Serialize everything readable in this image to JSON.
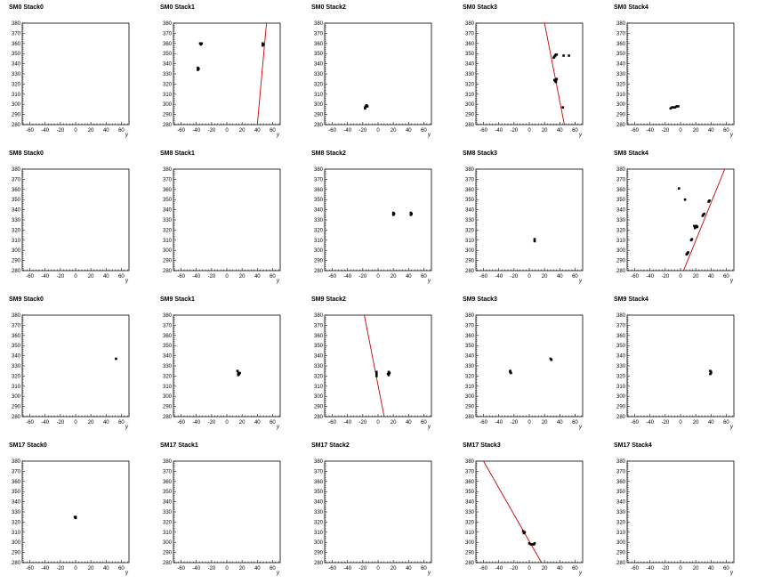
{
  "axis": {
    "xlabel": "y",
    "xlim": [
      -70,
      70
    ],
    "ylim": [
      280,
      380
    ],
    "xticks": [
      -60,
      -40,
      -20,
      0,
      20,
      40,
      60
    ],
    "yticks": [
      280,
      290,
      300,
      310,
      320,
      330,
      340,
      350,
      360,
      370,
      380
    ]
  },
  "colors": {
    "frame": "#000000",
    "points": "#000000",
    "fit_line": "#cc0000"
  },
  "chart_data": [
    {
      "type": "scatter",
      "title": "SM0 Stack0",
      "points": [],
      "fit": null
    },
    {
      "type": "scatter",
      "title": "SM0 Stack1",
      "points": [
        [
          -35,
          360
        ],
        [
          -34,
          359
        ],
        [
          -33,
          360
        ],
        [
          -38,
          336
        ],
        [
          -38,
          334
        ],
        [
          -37,
          335
        ],
        [
          47,
          360
        ],
        [
          48,
          359
        ],
        [
          47,
          358
        ]
      ],
      "fit": [
        [
          40,
          280
        ],
        [
          52,
          380
        ]
      ]
    },
    {
      "type": "scatter",
      "title": "SM0 Stack2",
      "points": [
        [
          -17,
          297
        ],
        [
          -16,
          298
        ],
        [
          -15,
          299
        ],
        [
          -14,
          298
        ],
        [
          -17,
          296
        ]
      ],
      "fit": null
    },
    {
      "type": "scatter",
      "title": "SM0 Stack3",
      "points": [
        [
          32,
          346
        ],
        [
          33,
          347
        ],
        [
          34,
          348
        ],
        [
          35,
          349
        ],
        [
          36,
          349
        ],
        [
          45,
          348
        ],
        [
          52,
          348
        ],
        [
          33,
          324
        ],
        [
          34,
          323
        ],
        [
          35,
          324
        ],
        [
          36,
          325
        ],
        [
          35,
          322
        ],
        [
          44,
          297
        ]
      ],
      "fit": [
        [
          20,
          380
        ],
        [
          46,
          280
        ]
      ]
    },
    {
      "type": "scatter",
      "title": "SM0 Stack4",
      "points": [
        [
          -13,
          296
        ],
        [
          -11,
          297
        ],
        [
          -9,
          297
        ],
        [
          -7,
          297
        ],
        [
          -5,
          298
        ],
        [
          -3,
          298
        ]
      ],
      "fit": null
    },
    {
      "type": "scatter",
      "title": "SM8 Stack0",
      "points": [],
      "fit": null
    },
    {
      "type": "scatter",
      "title": "SM8 Stack1",
      "points": [],
      "fit": null
    },
    {
      "type": "scatter",
      "title": "SM8 Stack2",
      "points": [
        [
          20,
          337
        ],
        [
          21,
          336
        ],
        [
          20,
          335
        ],
        [
          43,
          337
        ],
        [
          44,
          336
        ],
        [
          43,
          335
        ]
      ],
      "fit": null
    },
    {
      "type": "scatter",
      "title": "SM8 Stack3",
      "points": [
        [
          7,
          311
        ],
        [
          7,
          309
        ]
      ],
      "fit": null
    },
    {
      "type": "scatter",
      "title": "SM8 Stack4",
      "points": [
        [
          -2,
          361
        ],
        [
          6,
          350
        ],
        [
          37,
          348
        ],
        [
          38,
          349
        ],
        [
          30,
          335
        ],
        [
          31,
          336
        ],
        [
          29,
          334
        ],
        [
          21,
          324
        ],
        [
          22,
          323
        ],
        [
          19,
          322
        ],
        [
          18,
          324
        ],
        [
          15,
          311
        ],
        [
          14,
          310
        ],
        [
          10,
          298
        ],
        [
          9,
          297
        ],
        [
          8,
          296
        ]
      ],
      "fit": [
        [
          4,
          280
        ],
        [
          58,
          380
        ]
      ]
    },
    {
      "type": "scatter",
      "title": "SM9 Stack0",
      "points": [
        [
          53,
          337
        ]
      ],
      "fit": null
    },
    {
      "type": "scatter",
      "title": "SM9 Stack1",
      "points": [
        [
          14,
          325
        ],
        [
          15,
          323
        ],
        [
          16,
          322
        ],
        [
          15,
          321
        ],
        [
          17,
          323
        ]
      ],
      "fit": null
    },
    {
      "type": "scatter",
      "title": "SM9 Stack2",
      "points": [
        [
          -2,
          324
        ],
        [
          -2,
          322
        ],
        [
          -2,
          320
        ],
        [
          14,
          324
        ],
        [
          15,
          323
        ],
        [
          13,
          322
        ],
        [
          14,
          321
        ]
      ],
      "fit": [
        [
          -18,
          380
        ],
        [
          8,
          280
        ]
      ]
    },
    {
      "type": "scatter",
      "title": "SM9 Stack3",
      "points": [
        [
          -25,
          325
        ],
        [
          -24,
          323
        ],
        [
          -25,
          324
        ],
        [
          28,
          337
        ],
        [
          29,
          336
        ]
      ],
      "fit": null
    },
    {
      "type": "scatter",
      "title": "SM9 Stack4",
      "points": [
        [
          39,
          325
        ],
        [
          40,
          324
        ],
        [
          39,
          322
        ],
        [
          40,
          323
        ]
      ],
      "fit": null
    },
    {
      "type": "scatter",
      "title": "SM17 Stack0",
      "points": [
        [
          -1,
          325
        ],
        [
          0,
          324
        ],
        [
          0,
          325
        ]
      ],
      "fit": null
    },
    {
      "type": "scatter",
      "title": "SM17 Stack1",
      "points": [],
      "fit": null
    },
    {
      "type": "scatter",
      "title": "SM17 Stack2",
      "points": [],
      "fit": null
    },
    {
      "type": "scatter",
      "title": "SM17 Stack3",
      "points": [
        [
          -8,
          311
        ],
        [
          -7,
          309
        ],
        [
          -6,
          310
        ],
        [
          0,
          299
        ],
        [
          2,
          298
        ],
        [
          4,
          298
        ],
        [
          6,
          298
        ],
        [
          7,
          299
        ]
      ],
      "fit": [
        [
          -60,
          380
        ],
        [
          16,
          280
        ]
      ]
    },
    {
      "type": "scatter",
      "title": "SM17 Stack4",
      "points": [],
      "fit": null
    }
  ]
}
